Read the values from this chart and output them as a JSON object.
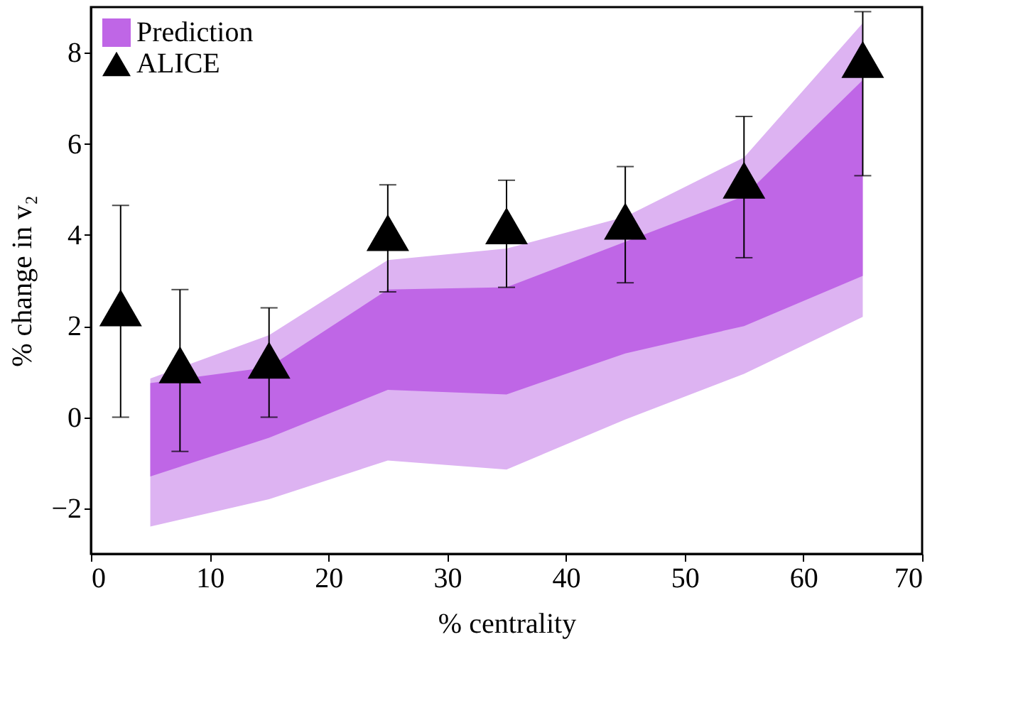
{
  "chart_data": {
    "type": "area",
    "xlabel": "% centrality",
    "ylabel": "% change in v₂",
    "xlim": [
      0,
      70
    ],
    "xticks": [
      0,
      10,
      20,
      30,
      40,
      50,
      60,
      70
    ],
    "ylim": [
      -3,
      9
    ],
    "yticks": [
      -2,
      0,
      2,
      4,
      6,
      8
    ],
    "grid": false,
    "legend": "top left",
    "series": [
      {
        "type": "area",
        "color": "#ddb3f2",
        "x": [
          5,
          15,
          25,
          35,
          45,
          55,
          65
        ],
        "values": [
          null,
          null,
          null,
          null,
          null,
          null,
          null
        ],
        "lower": [
          -2.4,
          -1.8,
          -0.95,
          -1.15,
          -0.05,
          0.95,
          2.2
        ],
        "upper": [
          0.85,
          1.8,
          3.45,
          3.7,
          4.4,
          5.7,
          8.65
        ]
      },
      {
        "type": "area",
        "name": "Prediction",
        "color": "#bf66e6",
        "x": [
          5,
          15,
          25,
          35,
          45,
          55,
          65
        ],
        "values": [
          null,
          null,
          null,
          null,
          null,
          null,
          null
        ],
        "lower": [
          -1.3,
          -0.45,
          0.6,
          0.5,
          1.4,
          2.0,
          3.1
        ],
        "upper": [
          0.75,
          1.1,
          2.8,
          2.85,
          3.85,
          4.85,
          7.4
        ]
      },
      {
        "type": "scatter",
        "name": "ALICE",
        "color": "#000000",
        "marker": "triangle",
        "x": [
          2.5,
          7.5,
          15,
          25,
          35,
          45,
          55,
          65
        ],
        "values": [
          2.4,
          1.15,
          1.25,
          4.05,
          4.2,
          4.3,
          5.2,
          7.85
        ],
        "errors": [
          [
            0,
            4.65
          ],
          [
            -0.75,
            2.8
          ],
          [
            0,
            2.4
          ],
          [
            2.75,
            5.1
          ],
          [
            2.85,
            5.2
          ],
          [
            2.95,
            5.5
          ],
          [
            3.5,
            6.6
          ],
          [
            5.3,
            8.9
          ]
        ]
      }
    ]
  }
}
